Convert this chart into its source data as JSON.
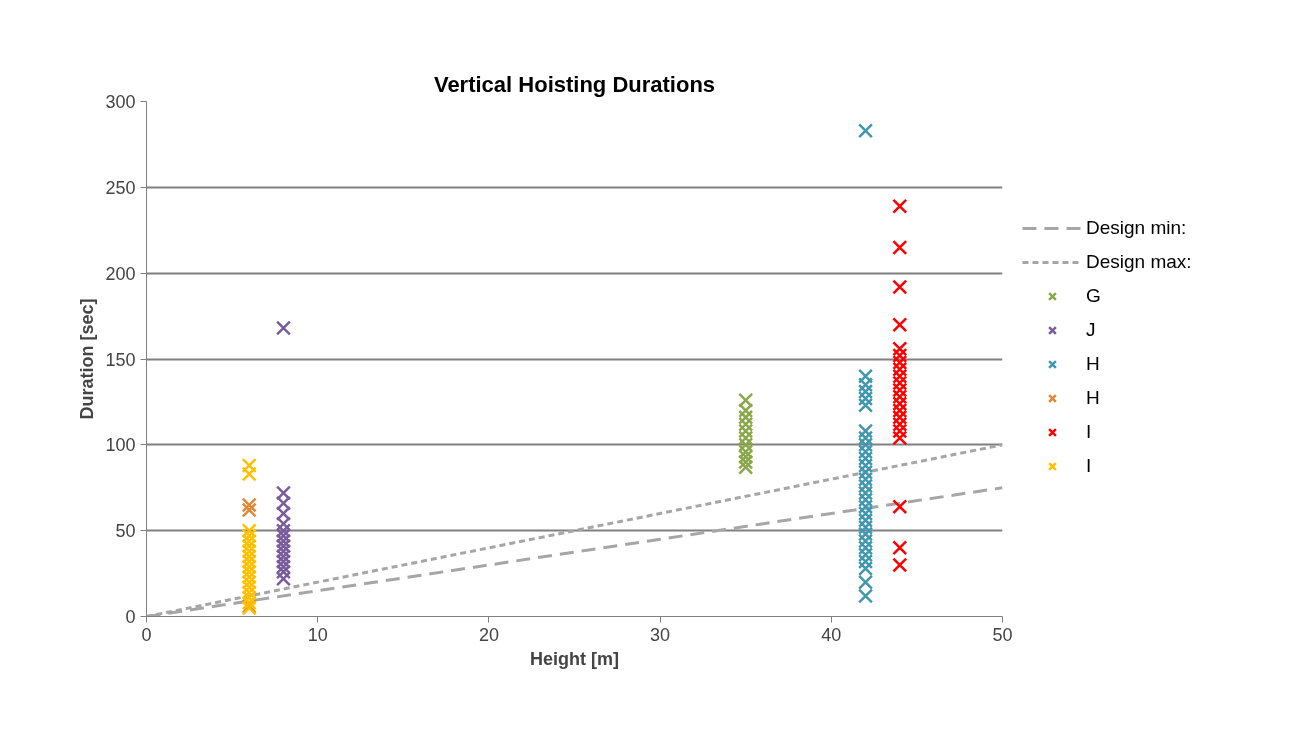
{
  "chart_data": {
    "type": "scatter",
    "title": "Vertical Hoisting Durations",
    "xlabel": "Height [m]",
    "ylabel": "Duration [sec]",
    "xlim": [
      0,
      50
    ],
    "xticks": [
      0,
      10,
      20,
      30,
      40,
      50
    ],
    "ylim": [
      0,
      300
    ],
    "yticks": [
      0,
      50,
      100,
      150,
      200,
      250,
      300
    ],
    "grid": "y",
    "legend": "right",
    "marker": "cross",
    "series": [
      {
        "name": "Design min:",
        "type": "line",
        "marker": "none",
        "line_style": "dashed",
        "color": "#a6a6a6",
        "x": [
          0,
          50
        ],
        "values": [
          0,
          75
        ]
      },
      {
        "name": "Design max:",
        "type": "line",
        "marker": "none",
        "line_style": "dotted",
        "color": "#a6a6a6",
        "x": [
          0,
          50
        ],
        "values": [
          0,
          100
        ]
      },
      {
        "name": "G",
        "color": "#8aa84a",
        "x": [
          35,
          35,
          35,
          35,
          35,
          35,
          35,
          35,
          35,
          35,
          35
        ],
        "values": [
          87,
          90,
          93,
          96,
          100,
          104,
          108,
          112,
          116,
          120,
          126
        ]
      },
      {
        "name": "J",
        "color": "#7a5c9c",
        "x": [
          8,
          8,
          8,
          8,
          8,
          8,
          8,
          8,
          8,
          8,
          8,
          8,
          8,
          8,
          8
        ],
        "values": [
          168,
          72,
          66,
          60,
          54,
          50,
          47,
          44,
          41,
          38,
          35,
          32,
          29,
          26,
          22
        ]
      },
      {
        "name": "H",
        "color": "#3f97b0",
        "x": [
          42,
          42,
          42,
          42,
          42,
          42,
          42,
          42,
          42,
          42,
          42,
          42,
          42,
          42,
          42,
          42,
          42,
          42,
          42,
          42,
          42,
          42,
          42,
          42,
          42,
          42,
          42,
          42,
          42
        ],
        "values": [
          283,
          140,
          135,
          131,
          127,
          123,
          108,
          104,
          100,
          96,
          92,
          88,
          84,
          80,
          76,
          72,
          68,
          64,
          60,
          56,
          52,
          48,
          44,
          40,
          36,
          32,
          28,
          20,
          12
        ]
      },
      {
        "name": "H",
        "color": "#e0883a",
        "x": [
          6,
          6,
          6
        ],
        "values": [
          65,
          62,
          6
        ]
      },
      {
        "name": "I",
        "color": "#ff0000",
        "x": [
          44,
          44,
          44,
          44,
          44,
          44,
          44,
          44,
          44,
          44,
          44,
          44,
          44,
          44,
          44,
          44,
          44,
          44,
          44,
          44,
          44
        ],
        "values": [
          239,
          215,
          192,
          170,
          156,
          152,
          148,
          144,
          140,
          136,
          132,
          128,
          124,
          120,
          116,
          112,
          108,
          104,
          64,
          40,
          30
        ]
      },
      {
        "name": "I",
        "color": "#ffc000",
        "x": [
          6,
          6,
          6,
          6,
          6,
          6,
          6,
          6,
          6,
          6,
          6,
          6,
          6,
          6,
          6,
          6,
          6,
          6
        ],
        "values": [
          88,
          83,
          50,
          47,
          44,
          41,
          38,
          35,
          32,
          29,
          26,
          23,
          20,
          17,
          14,
          11,
          8,
          5
        ]
      }
    ]
  }
}
